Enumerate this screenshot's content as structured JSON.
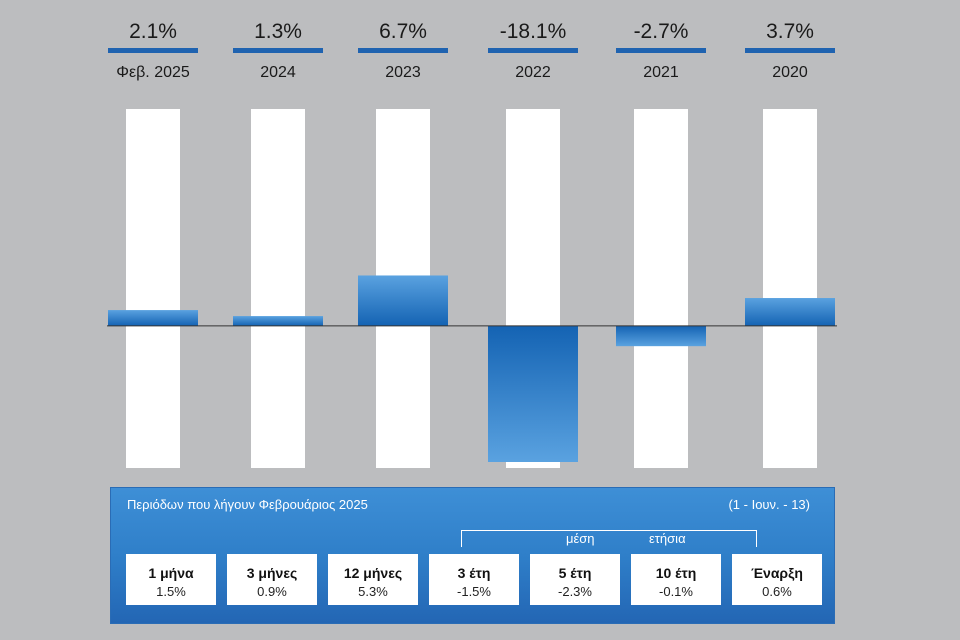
{
  "chart_data": {
    "type": "bar",
    "categories": [
      "Φεβ. 2025",
      "2024",
      "2023",
      "2022",
      "2021",
      "2020"
    ],
    "values": [
      2.1,
      1.3,
      6.7,
      -18.1,
      -2.7,
      3.7
    ],
    "value_labels": [
      "2.1%",
      "1.3%",
      "6.7%",
      "-18.1%",
      "-2.7%",
      "3.7%"
    ],
    "ylim": [
      -18.1,
      29.1
    ],
    "grid": false,
    "colors": {
      "bar_light": "#5aa2e0",
      "bar_dark": "#1463b3",
      "track": "#ffffff",
      "underline": "#1f63b0",
      "background": "#bcbdbf"
    }
  },
  "periods": {
    "title": "Περιόδων που λήγουν Φεβρουάριος 2025",
    "range": "(1 - Ιουν. - 13)",
    "bracket_label_left": "μέση",
    "bracket_label_right": "ετήσια",
    "items": [
      {
        "label": "1 μήνα",
        "value": "1.5%"
      },
      {
        "label": "3 μήνες",
        "value": "0.9%"
      },
      {
        "label": "12 μήνες",
        "value": "5.3%"
      },
      {
        "label": "3 έτη",
        "value": "-1.5%"
      },
      {
        "label": "5 έτη",
        "value": "-2.3%"
      },
      {
        "label": "10 έτη",
        "value": "-0.1%"
      },
      {
        "label": "Έναρξη",
        "value": "0.6%"
      }
    ]
  }
}
